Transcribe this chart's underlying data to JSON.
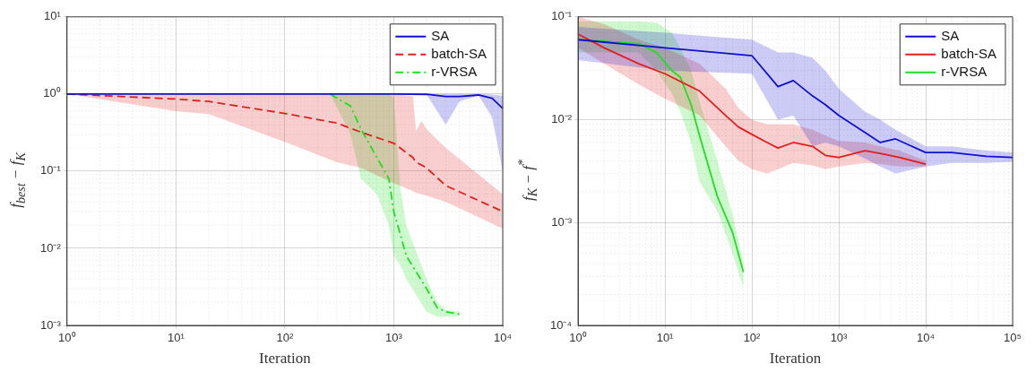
{
  "chart_data": [
    {
      "type": "line",
      "xlabel": "Iteration",
      "ylabel": "f$_{best}$ − f$_{K}$",
      "log": "xy",
      "grid": true,
      "legend": "top right",
      "xlim": [
        1,
        10000
      ],
      "xticks": [
        {
          "value": 1,
          "label": "10⁰"
        },
        {
          "value": 10,
          "label": "10¹"
        },
        {
          "value": 100,
          "label": "10²"
        },
        {
          "value": 1000,
          "label": "10³"
        },
        {
          "value": 10000,
          "label": "10⁴"
        }
      ],
      "ylim": [
        0.001,
        10
      ],
      "yticks": [
        {
          "value": 0.001,
          "label": "10⁻³"
        },
        {
          "value": 0.01,
          "label": "10⁻²"
        },
        {
          "value": 0.1,
          "label": "10⁻¹"
        },
        {
          "value": 1,
          "label": "10⁰"
        },
        {
          "value": 10,
          "label": "10¹"
        }
      ],
      "series": [
        {
          "name": "SA",
          "color": "#1010d0",
          "line_style": "solid",
          "x": [
            1,
            100,
            1000,
            2000,
            3000,
            4000,
            6000,
            8000,
            10000
          ],
          "values": [
            1,
            1,
            1,
            0.99,
            0.93,
            0.93,
            0.97,
            0.88,
            0.65
          ],
          "lower": [
            1,
            1,
            1,
            0.98,
            0.4,
            0.8,
            0.96,
            0.5,
            0.1
          ],
          "upper": [
            1,
            1,
            1,
            1,
            1,
            1,
            1,
            0.98,
            0.95
          ]
        },
        {
          "name": "batch-SA",
          "color": "#e02020",
          "line_style": "dashed",
          "x": [
            1,
            10,
            20,
            100,
            300,
            500,
            1000,
            1500,
            1600,
            1800,
            2000,
            3000,
            10000
          ],
          "values": [
            1,
            0.86,
            0.8,
            0.56,
            0.42,
            0.32,
            0.23,
            0.15,
            0.13,
            0.12,
            0.11,
            0.065,
            0.03
          ],
          "lower": [
            1,
            0.6,
            0.55,
            0.24,
            0.13,
            0.11,
            0.07,
            0.055,
            0.052,
            0.05,
            0.048,
            0.04,
            0.018
          ],
          "upper": [
            1,
            1,
            1,
            1,
            1,
            1,
            1,
            0.93,
            0.33,
            0.45,
            0.35,
            0.2,
            0.05
          ]
        },
        {
          "name": "r-VRSA",
          "color": "#22dd22",
          "line_style": "dashdot",
          "x": [
            260,
            400,
            500,
            700,
            900,
            1000,
            1150,
            1300,
            2000,
            2500,
            3000,
            4000
          ],
          "values": [
            1,
            0.7,
            0.35,
            0.15,
            0.08,
            0.03,
            0.015,
            0.008,
            0.003,
            0.0017,
            0.0015,
            0.0014
          ],
          "lower": [
            1,
            0.3,
            0.08,
            0.05,
            0.02,
            0.008,
            0.006,
            0.004,
            0.0015,
            0.0013,
            0.0013,
            0.0013
          ],
          "upper": [
            1,
            1,
            1,
            1,
            1,
            0.9,
            0.06,
            0.02,
            0.004,
            0.002,
            0.0016,
            0.0015
          ]
        }
      ]
    },
    {
      "type": "line",
      "xlabel": "Iteration",
      "ylabel": "f$_{K}$ − f$^{*}$",
      "log": "xy",
      "grid": true,
      "legend": "top right",
      "xlim": [
        1,
        100000
      ],
      "xticks": [
        {
          "value": 1,
          "label": "10⁰"
        },
        {
          "value": 10,
          "label": "10¹"
        },
        {
          "value": 100,
          "label": "10²"
        },
        {
          "value": 1000,
          "label": "10³"
        },
        {
          "value": 10000,
          "label": "10⁴"
        },
        {
          "value": 100000,
          "label": "10⁵"
        }
      ],
      "ylim": [
        0.0001,
        0.1
      ],
      "yticks": [
        {
          "value": 0.0001,
          "label": "10⁻⁴"
        },
        {
          "value": 0.001,
          "label": "10⁻³"
        },
        {
          "value": 0.01,
          "label": "10⁻²"
        },
        {
          "value": 0.1,
          "label": "10⁻¹"
        }
      ],
      "series": [
        {
          "name": "SA",
          "color": "#1010d0",
          "line_style": "solid",
          "x": [
            1,
            10,
            100,
            200,
            300,
            500,
            700,
            1000,
            2000,
            3000,
            4500,
            10000,
            20000,
            50000,
            100000
          ],
          "values": [
            0.06,
            0.05,
            0.042,
            0.021,
            0.024,
            0.017,
            0.014,
            0.011,
            0.0075,
            0.006,
            0.0065,
            0.0048,
            0.0048,
            0.0044,
            0.0043
          ],
          "lower": [
            0.038,
            0.03,
            0.028,
            0.01,
            0.011,
            0.0055,
            0.006,
            0.0055,
            0.0042,
            0.0035,
            0.003,
            0.0035,
            0.0038,
            0.0038,
            0.0039
          ],
          "upper": [
            0.08,
            0.07,
            0.06,
            0.045,
            0.045,
            0.04,
            0.03,
            0.02,
            0.012,
            0.01,
            0.008,
            0.0055,
            0.0055,
            0.005,
            0.0048
          ]
        },
        {
          "name": "batch-SA",
          "color": "#e02020",
          "line_style": "solid",
          "x": [
            1,
            2,
            5,
            10,
            25,
            50,
            70,
            100,
            150,
            200,
            300,
            500,
            700,
            1000,
            2000,
            3000,
            5000,
            10000
          ],
          "values": [
            0.068,
            0.05,
            0.035,
            0.028,
            0.019,
            0.011,
            0.0085,
            0.0072,
            0.006,
            0.0053,
            0.006,
            0.0055,
            0.0045,
            0.0043,
            0.005,
            0.0047,
            0.0043,
            0.0037
          ],
          "lower": [
            0.05,
            0.035,
            0.022,
            0.016,
            0.011,
            0.0055,
            0.004,
            0.0033,
            0.003,
            0.0033,
            0.0038,
            0.0036,
            0.0033,
            0.0035,
            0.0038,
            0.0037,
            0.0035,
            0.0035
          ],
          "upper": [
            0.1,
            0.085,
            0.06,
            0.05,
            0.035,
            0.02,
            0.013,
            0.01,
            0.009,
            0.009,
            0.009,
            0.008,
            0.007,
            0.0062,
            0.006,
            0.0055,
            0.005,
            0.004
          ]
        },
        {
          "name": "r-VRSA",
          "color": "#22dd22",
          "line_style": "solid",
          "x": [
            1,
            5,
            8,
            12,
            15,
            20,
            25,
            40,
            60,
            80
          ],
          "values": [
            0.06,
            0.055,
            0.045,
            0.03,
            0.026,
            0.014,
            0.007,
            0.0018,
            0.0008,
            0.00033
          ],
          "lower": [
            0.045,
            0.045,
            0.03,
            0.018,
            0.012,
            0.006,
            0.0025,
            0.0013,
            0.0005,
            0.00023
          ],
          "upper": [
            0.09,
            0.09,
            0.088,
            0.07,
            0.05,
            0.03,
            0.015,
            0.004,
            0.0012,
            0.0004
          ]
        }
      ]
    }
  ]
}
